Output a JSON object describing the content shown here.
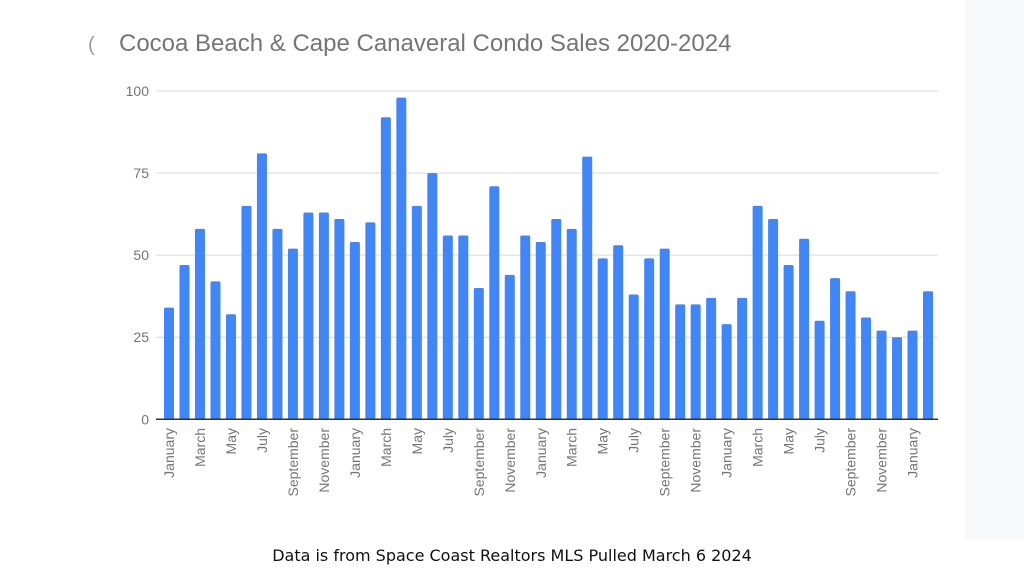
{
  "footer_note": "Data is from Space Coast Realtors MLS Pulled March 6 2024",
  "colors": {
    "bar": "#4285f4",
    "grid": "#d9d9d9",
    "axis_text": "#757575"
  },
  "chart_data": {
    "type": "bar",
    "title": "Cocoa Beach & Cape Canaveral Condo Sales 2020-2024",
    "xlabel": "",
    "ylabel": "",
    "ylim": [
      0,
      100
    ],
    "yticks": [
      0,
      25,
      50,
      75,
      100
    ],
    "grid": true,
    "categories": [
      "January",
      "February",
      "March",
      "April",
      "May",
      "June",
      "July",
      "August",
      "September",
      "October",
      "November",
      "December",
      "January",
      "February",
      "March",
      "April",
      "May",
      "June",
      "July",
      "August",
      "September",
      "October",
      "November",
      "December",
      "January",
      "February",
      "March",
      "April",
      "May",
      "June",
      "July",
      "August",
      "September",
      "October",
      "November",
      "December",
      "January",
      "February",
      "March",
      "April",
      "May",
      "June",
      "July",
      "August",
      "September",
      "October",
      "November",
      "December",
      "January",
      "February"
    ],
    "visible_tick_labels": [
      "January",
      "March",
      "May",
      "July",
      "September",
      "November",
      "January",
      "March",
      "May",
      "July",
      "September",
      "November",
      "January",
      "March",
      "May",
      "July",
      "September",
      "November",
      "January",
      "March",
      "May",
      "July",
      "September",
      "November",
      "January"
    ],
    "values": [
      34,
      47,
      58,
      42,
      32,
      65,
      81,
      58,
      52,
      63,
      63,
      61,
      54,
      60,
      92,
      98,
      65,
      75,
      56,
      56,
      40,
      71,
      44,
      56,
      54,
      61,
      58,
      80,
      49,
      53,
      38,
      49,
      52,
      35,
      35,
      37,
      29,
      37,
      65,
      61,
      47,
      55,
      30,
      43,
      39,
      31,
      27,
      25,
      27,
      39
    ]
  }
}
